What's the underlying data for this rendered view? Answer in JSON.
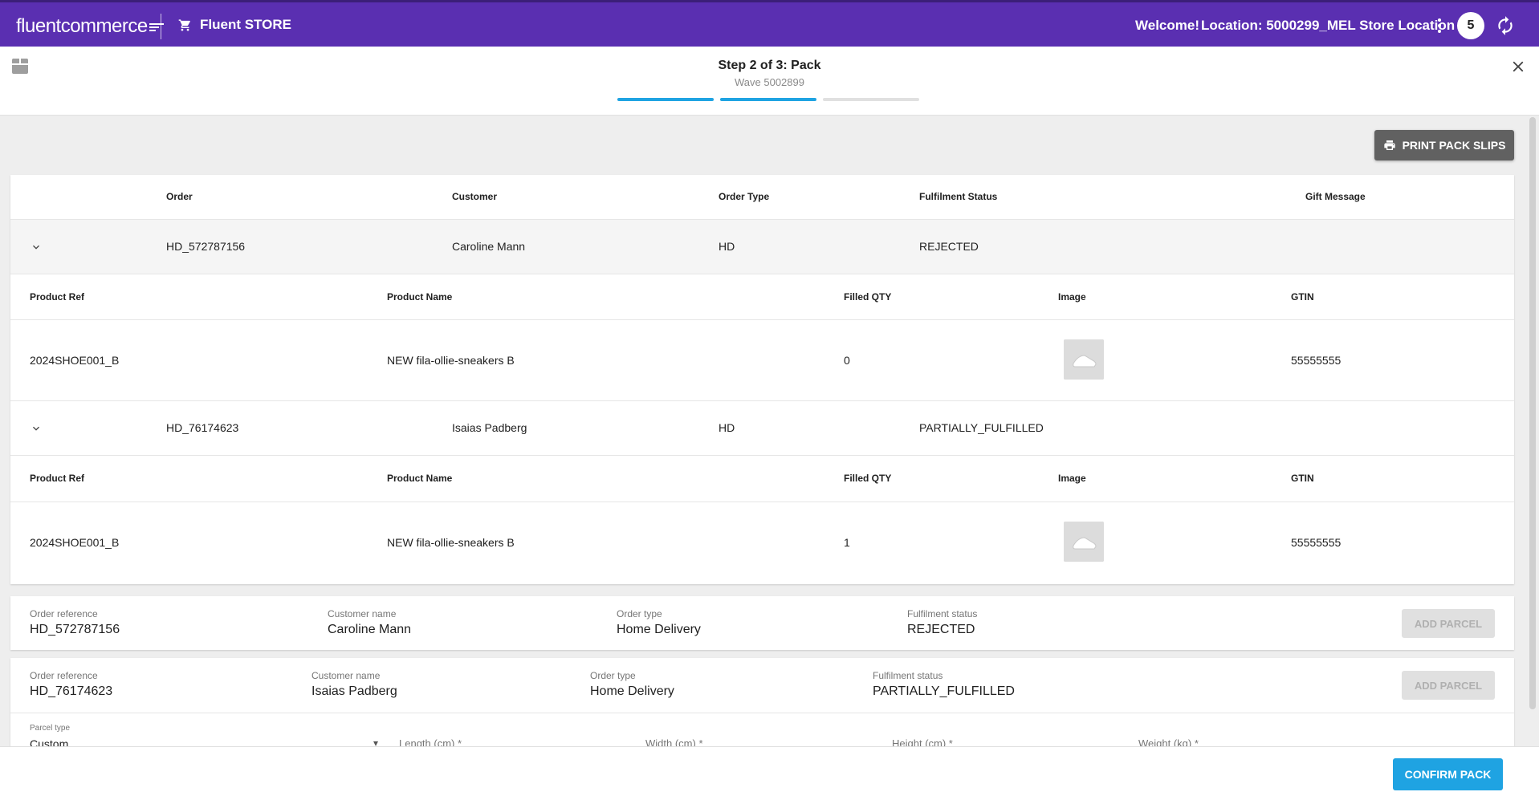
{
  "header": {
    "logo_text": "fluentcommerce",
    "store_label": "Fluent STORE",
    "welcome": "Welcome!",
    "location": "Location: 5000299_MEL Store Location",
    "badge_count": "5",
    "icons": [
      "cart-icon",
      "kebab-menu-icon",
      "refresh-icon"
    ],
    "brand_color": "#5a2fb1"
  },
  "step": {
    "title": "Step 2 of 3: Pack",
    "subtitle": "Wave 5002899",
    "steps_total": 3,
    "steps_complete": 2,
    "active_color": "#1fa3e2",
    "inactive_color": "#e0e0e0"
  },
  "toolbar": {
    "print_label": "PRINT PACK SLIPS"
  },
  "orders_table": {
    "columns": [
      "Order",
      "Customer",
      "Order Type",
      "Fulfilment Status",
      "Gift Message"
    ],
    "product_columns": [
      "Product Ref",
      "Product Name",
      "Filled QTY",
      "Image",
      "GTIN"
    ],
    "orders": [
      {
        "order": "HD_572787156",
        "customer": "Caroline Mann",
        "order_type": "HD",
        "status": "REJECTED",
        "gift_message": "",
        "product": {
          "ref": "2024SHOE001_B",
          "name": "NEW fila-ollie-sneakers B",
          "qty": "0",
          "gtin": "55555555"
        }
      },
      {
        "order": "HD_76174623",
        "customer": "Isaias Padberg",
        "order_type": "HD",
        "status": "PARTIALLY_FULFILLED",
        "gift_message": "",
        "product": {
          "ref": "2024SHOE001_B",
          "name": "NEW fila-ollie-sneakers B",
          "qty": "1",
          "gtin": "55555555"
        }
      }
    ]
  },
  "parcel_cards": [
    {
      "labels": {
        "ref": "Order reference",
        "customer": "Customer name",
        "type": "Order type",
        "status": "Fulfilment status"
      },
      "ref": "HD_572787156",
      "customer": "Caroline Mann",
      "type": "Home Delivery",
      "status": "REJECTED",
      "button": "ADD PARCEL"
    },
    {
      "labels": {
        "ref": "Order reference",
        "customer": "Customer name",
        "type": "Order type",
        "status": "Fulfilment status"
      },
      "ref": "HD_76174623",
      "customer": "Isaias Padberg",
      "type": "Home Delivery",
      "status": "PARTIALLY_FULFILLED",
      "button": "ADD PARCEL"
    }
  ],
  "parcel_form": {
    "type_label": "Parcel type",
    "type_value": "Custom",
    "length_label": "Length (cm) *",
    "width_label": "Width (cm) *",
    "height_label": "Height (cm) *",
    "weight_label": "Weight (kg) *"
  },
  "footer": {
    "confirm_label": "CONFIRM PACK"
  }
}
